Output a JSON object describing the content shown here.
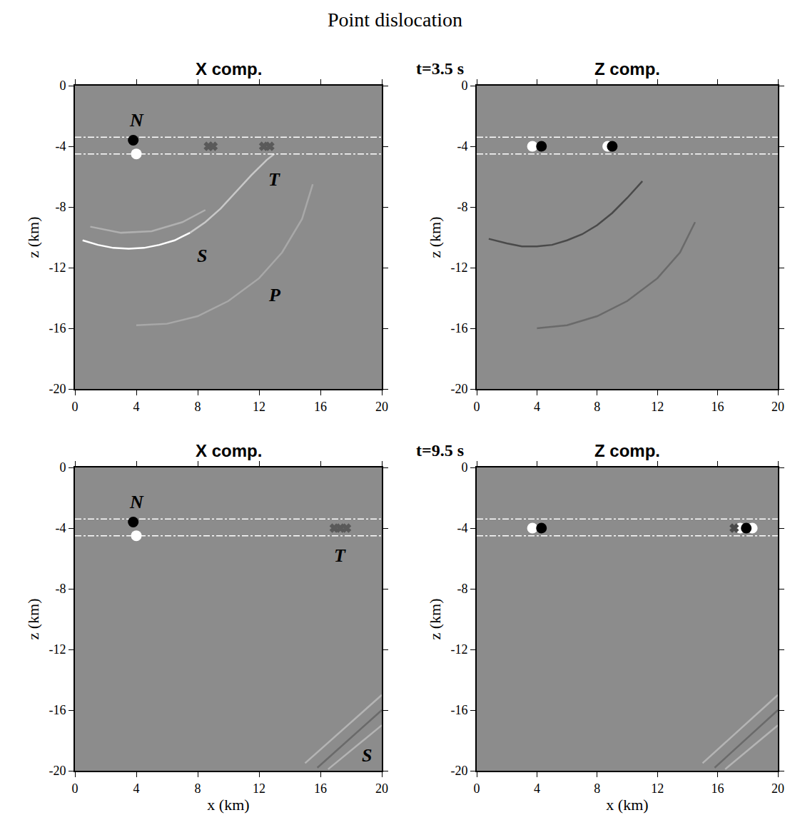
{
  "title": "Point dislocation",
  "rows": [
    {
      "label": "t=3.5 s"
    },
    {
      "label": "t=9.5 s"
    }
  ],
  "chart_data": [
    {
      "type": "line",
      "title": "X comp.",
      "ylabel": "z (km)",
      "xlim": [
        0,
        20
      ],
      "ylim": [
        -20,
        0
      ],
      "xticks": [
        0,
        4,
        8,
        12,
        16,
        20
      ],
      "yticks": [
        0,
        -4,
        -8,
        -12,
        -16,
        -20
      ],
      "series": [
        {
          "type": "line",
          "color": "#ffffff",
          "line_style": "solid",
          "x": [
            0.5,
            1.5,
            2.5,
            3.5,
            4.5,
            5.5,
            6.5,
            7.5
          ],
          "y": [
            -10.2,
            -10.5,
            -10.7,
            -10.75,
            -10.7,
            -10.5,
            -10.2,
            -9.7
          ]
        },
        {
          "type": "line",
          "color": "#c8c8c8",
          "line_style": "solid",
          "x": [
            7.5,
            8.5,
            9.5,
            10.5,
            11.5,
            12.5,
            13
          ],
          "y": [
            -9.7,
            -9.0,
            -8.1,
            -7.0,
            -5.9,
            -4.9,
            -4.5
          ]
        },
        {
          "type": "line",
          "color": "#b0b0b0",
          "line_style": "solid",
          "x": [
            1,
            3,
            5,
            7,
            8.5
          ],
          "y": [
            -9.3,
            -9.7,
            -9.6,
            -9.0,
            -8.2
          ]
        },
        {
          "type": "line",
          "color": "#a8a8a8",
          "line_style": "solid",
          "x": [
            4,
            6,
            8,
            10,
            12,
            13.5,
            14.8,
            15.5
          ],
          "y": [
            -15.8,
            -15.7,
            -15.2,
            -14.2,
            -12.7,
            -11,
            -8.8,
            -6.5
          ]
        },
        {
          "type": "line",
          "color": "#ffffff",
          "line_style": "dashdot",
          "x": [
            0,
            20
          ],
          "y": [
            -3.4,
            -3.4
          ]
        },
        {
          "type": "line",
          "color": "#ffffff",
          "line_style": "dashdot",
          "x": [
            0,
            20
          ],
          "y": [
            -4.5,
            -4.5
          ]
        },
        {
          "type": "scatter",
          "marker": "circle",
          "color": "#000000",
          "x": [
            3.8
          ],
          "y": [
            -3.6
          ]
        },
        {
          "type": "scatter",
          "marker": "circle",
          "color": "#ffffff",
          "x": [
            4.0
          ],
          "y": [
            -4.5
          ]
        },
        {
          "type": "scatter",
          "marker": "x",
          "color": "#5a5a5a",
          "x": [
            8.7,
            9.0,
            12.3,
            12.7
          ],
          "y": [
            -4,
            -4,
            -4,
            -4
          ]
        }
      ],
      "annotations": [
        {
          "text": "N",
          "x": 4,
          "y": -2.3
        },
        {
          "text": "T",
          "x": 13,
          "y": -6.2
        },
        {
          "text": "S",
          "x": 8.3,
          "y": -11.2
        },
        {
          "text": "P",
          "x": 13,
          "y": -13.8
        }
      ]
    },
    {
      "type": "line",
      "title": "Z comp.",
      "ylabel": "z (km)",
      "xlim": [
        0,
        20
      ],
      "ylim": [
        -20,
        0
      ],
      "xticks": [
        0,
        4,
        8,
        12,
        16,
        20
      ],
      "yticks": [
        0,
        -4,
        -8,
        -12,
        -16,
        -20
      ],
      "series": [
        {
          "type": "line",
          "color": "#4a4a4a",
          "line_style": "solid",
          "x": [
            0.8,
            2,
            3,
            4,
            5,
            6,
            7,
            8,
            9,
            10,
            11
          ],
          "y": [
            -10.1,
            -10.4,
            -10.6,
            -10.6,
            -10.5,
            -10.2,
            -9.8,
            -9.2,
            -8.4,
            -7.4,
            -6.3
          ]
        },
        {
          "type": "line",
          "color": "#6a6a6a",
          "line_style": "solid",
          "x": [
            4,
            6,
            8,
            10,
            12,
            13.5,
            14.5
          ],
          "y": [
            -16,
            -15.8,
            -15.2,
            -14.2,
            -12.7,
            -11,
            -9
          ]
        },
        {
          "type": "line",
          "color": "#ffffff",
          "line_style": "dashdot",
          "x": [
            0,
            20
          ],
          "y": [
            -3.4,
            -3.4
          ]
        },
        {
          "type": "line",
          "color": "#ffffff",
          "line_style": "dashdot",
          "x": [
            0,
            20
          ],
          "y": [
            -4.5,
            -4.5
          ]
        },
        {
          "type": "scatter",
          "marker": "circle",
          "color": "#ffffff",
          "x": [
            3.7,
            8.7
          ],
          "y": [
            -4,
            -4
          ]
        },
        {
          "type": "scatter",
          "marker": "circle",
          "color": "#000000",
          "x": [
            4.3,
            9.0
          ],
          "y": [
            -4,
            -4
          ]
        }
      ],
      "annotations": []
    },
    {
      "type": "line",
      "title": "X comp.",
      "xlabel": "x (km)",
      "ylabel": "z (km)",
      "xlim": [
        0,
        20
      ],
      "ylim": [
        -20,
        0
      ],
      "xticks": [
        0,
        4,
        8,
        12,
        16,
        20
      ],
      "yticks": [
        0,
        -4,
        -8,
        -12,
        -16,
        -20
      ],
      "series": [
        {
          "type": "line",
          "color": "#b4b4b4",
          "line_style": "solid",
          "x": [
            15,
            20
          ],
          "y": [
            -19.5,
            -15
          ]
        },
        {
          "type": "line",
          "color": "#6a6a6a",
          "line_style": "solid",
          "x": [
            15.8,
            20
          ],
          "y": [
            -19.8,
            -16
          ]
        },
        {
          "type": "line",
          "color": "#b4b4b4",
          "line_style": "solid",
          "x": [
            16.5,
            20
          ],
          "y": [
            -19.9,
            -17
          ]
        },
        {
          "type": "line",
          "color": "#ffffff",
          "line_style": "dashdot",
          "x": [
            0,
            20
          ],
          "y": [
            -3.4,
            -3.4
          ]
        },
        {
          "type": "line",
          "color": "#ffffff",
          "line_style": "dashdot",
          "x": [
            0,
            20
          ],
          "y": [
            -4.5,
            -4.5
          ]
        },
        {
          "type": "scatter",
          "marker": "circle",
          "color": "#000000",
          "x": [
            3.8
          ],
          "y": [
            -3.6
          ]
        },
        {
          "type": "scatter",
          "marker": "circle",
          "color": "#ffffff",
          "x": [
            4.0
          ],
          "y": [
            -4.5
          ]
        },
        {
          "type": "scatter",
          "marker": "x",
          "color": "#5a5a5a",
          "x": [
            16.9,
            17.3,
            17.7
          ],
          "y": [
            -4,
            -4,
            -4
          ]
        }
      ],
      "annotations": [
        {
          "text": "N",
          "x": 4,
          "y": -2.3
        },
        {
          "text": "T",
          "x": 17.3,
          "y": -5.8
        },
        {
          "text": "S",
          "x": 19,
          "y": -19
        }
      ]
    },
    {
      "type": "line",
      "title": "Z comp.",
      "xlabel": "x (km)",
      "ylabel": "z (km)",
      "xlim": [
        0,
        20
      ],
      "ylim": [
        -20,
        0
      ],
      "xticks": [
        0,
        4,
        8,
        12,
        16,
        20
      ],
      "yticks": [
        0,
        -4,
        -8,
        -12,
        -16,
        -20
      ],
      "series": [
        {
          "type": "line",
          "color": "#b4b4b4",
          "line_style": "solid",
          "x": [
            15,
            20
          ],
          "y": [
            -19.5,
            -15
          ]
        },
        {
          "type": "line",
          "color": "#6a6a6a",
          "line_style": "solid",
          "x": [
            15.8,
            20
          ],
          "y": [
            -19.8,
            -16
          ]
        },
        {
          "type": "line",
          "color": "#b4b4b4",
          "line_style": "solid",
          "x": [
            16.5,
            20
          ],
          "y": [
            -19.9,
            -17
          ]
        },
        {
          "type": "line",
          "color": "#ffffff",
          "line_style": "dashdot",
          "x": [
            0,
            20
          ],
          "y": [
            -3.4,
            -3.4
          ]
        },
        {
          "type": "line",
          "color": "#ffffff",
          "line_style": "dashdot",
          "x": [
            0,
            20
          ],
          "y": [
            -4.5,
            -4.5
          ]
        },
        {
          "type": "scatter",
          "marker": "circle",
          "color": "#ffffff",
          "x": [
            3.7,
            17.5,
            18.3
          ],
          "y": [
            -4,
            -4,
            -4
          ]
        },
        {
          "type": "scatter",
          "marker": "circle",
          "color": "#000000",
          "x": [
            4.3,
            17.9
          ],
          "y": [
            -4,
            -4
          ]
        },
        {
          "type": "scatter",
          "marker": "x",
          "color": "#4a4a4a",
          "x": [
            17.1
          ],
          "y": [
            -4
          ]
        }
      ],
      "annotations": []
    }
  ]
}
